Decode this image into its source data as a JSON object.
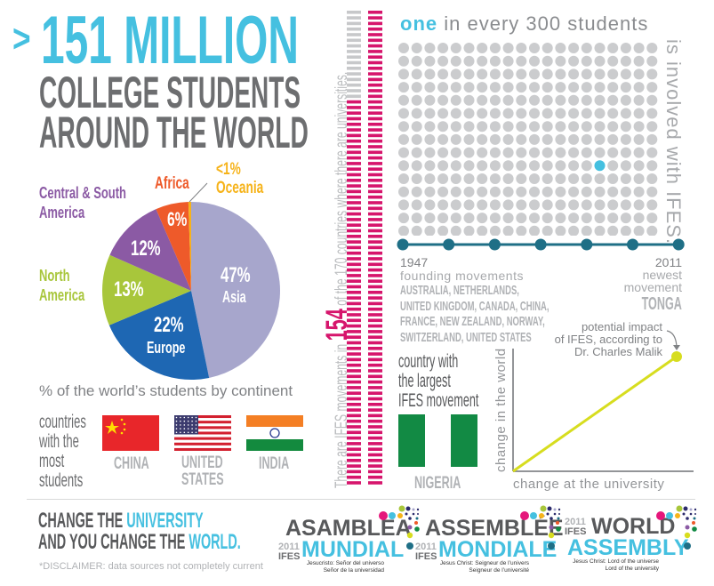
{
  "headline": {
    "prefix": ">",
    "number": "151 MILLION",
    "line2": "COLLEGE STUDENTS",
    "line3": "AROUND THE WORLD"
  },
  "pie": {
    "caption": "% of the world’s students by continent",
    "slices": [
      {
        "name": "Asia",
        "label": "47%",
        "value": 47,
        "color": "#a7a6cc"
      },
      {
        "name": "Europe",
        "label": "22%",
        "value": 22,
        "color": "#1e67b3"
      },
      {
        "name": "North America",
        "label": "13%",
        "value": 13,
        "color": "#a8c63b"
      },
      {
        "name": "Central & South America",
        "label": "12%",
        "value": 12,
        "color": "#8b5aa4"
      },
      {
        "name": "Africa",
        "label": "6%",
        "value": 6,
        "color": "#ee5a2a"
      },
      {
        "name": "Oceania",
        "label": "<1%",
        "value": 0.5,
        "color": "#f6b31a"
      }
    ],
    "outside": {
      "csa1": "Central & South",
      "csa2": "America",
      "na1": "North",
      "na2": "America",
      "africa": "Africa",
      "oce_pct": "<1%",
      "oce": "Oceania"
    }
  },
  "most_students": {
    "label": [
      "countries",
      "with the",
      "most",
      "students"
    ],
    "countries": [
      {
        "name": "CHINA"
      },
      {
        "name1": "UNITED",
        "name2": "STATES"
      },
      {
        "name": "INDIA"
      }
    ]
  },
  "movements": {
    "pre": "There are IFES movements in",
    "count": "154",
    "post": "of the 170 countries where there are universities.",
    "total": 170,
    "with_ifes": 154,
    "color": "#d6156c"
  },
  "ratio": {
    "one": "one",
    "rest": "in every 300 students",
    "vertical": "is involved with IFES.",
    "total": 300,
    "highlighted": 1
  },
  "timeline": {
    "start_year": "1947",
    "start_label": "founding movements",
    "founding": [
      "AUSTRALIA, NETHERLANDS,",
      "UNITED KINGDOM, CANADA, CHINA,",
      "FRANCE, NEW ZEALAND, NORWAY,",
      "SWITZERLAND, UNITED STATES"
    ],
    "end_year": "2011",
    "end_label1": "newest",
    "end_label2": "movement",
    "newest": "TONGA"
  },
  "largest": {
    "label": [
      "country with",
      "the largest",
      "IFES movement"
    ],
    "country": "NIGERIA"
  },
  "impact": {
    "note": [
      "potential impact",
      "of IFES, according to",
      "Dr. Charles Malik"
    ],
    "ylabel": "change in the world",
    "xlabel": "change at the university"
  },
  "tagline": {
    "l1a": "CHANGE THE ",
    "l1b": "UNIVERSITY",
    "l2a": "AND YOU CHANGE THE ",
    "l2b": "WORLD."
  },
  "disclaimer": "*DISCLAIMER: data sources not completely current",
  "logos": [
    {
      "year": "2011",
      "org": "IFES",
      "top": "ASAMBLEA",
      "bottom": "MUNDIAL",
      "sub1": "Jesucristo: Señor del universo",
      "sub2": "Señor de la universidad"
    },
    {
      "year": "2011",
      "org": "IFES",
      "top": "ASSEMBLÉE",
      "bottom": "MONDIALE",
      "sub1": "Jesus Christ: Seigneur de l’univers",
      "sub2": "Seigneur de l’université"
    },
    {
      "year": "2011",
      "org": "IFES",
      "top": "WORLD",
      "bottom": "ASSEMBLY",
      "sub1": "Jesus Christ: Lord of the universe",
      "sub2": "Lord of the university"
    }
  ]
}
